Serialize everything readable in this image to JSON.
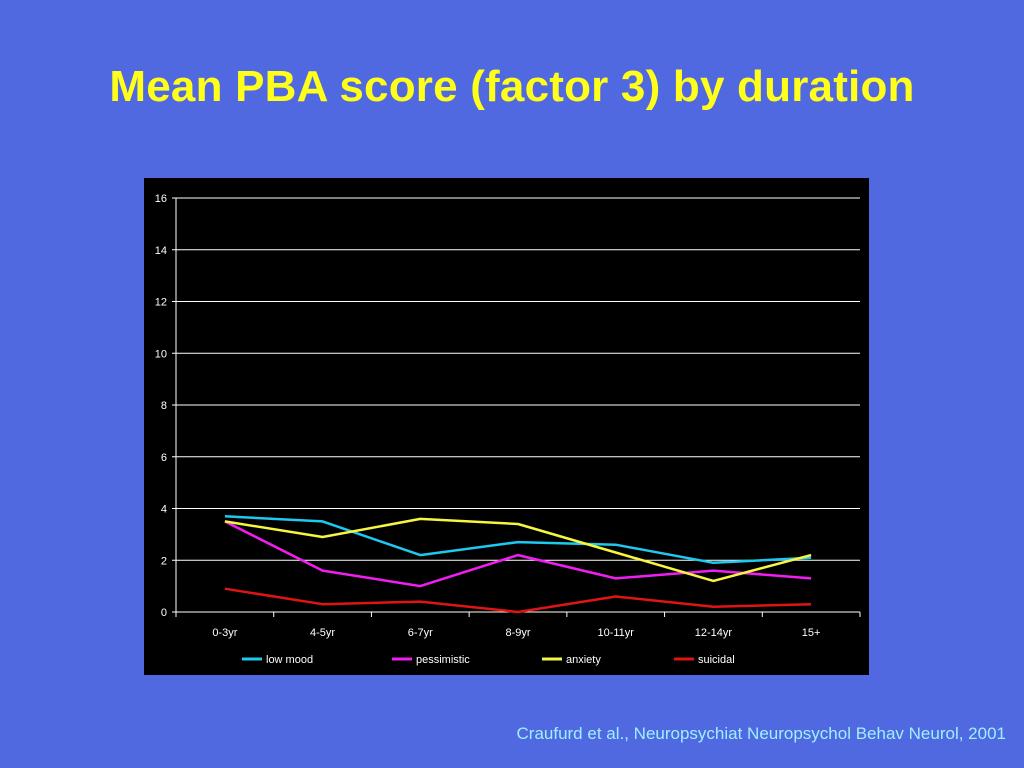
{
  "slide": {
    "title": "Mean PBA score (factor 3) by duration",
    "citation": "Craufurd et al., Neuropsychiat Neuropsychol Behav Neurol, 2001"
  },
  "colors": {
    "background": "#5068e0",
    "title": "#ffff1a",
    "citation": "#9ff0ff",
    "chart_bg": "#000000"
  },
  "chart_data": {
    "type": "line",
    "title": "",
    "xlabel": "",
    "ylabel": "",
    "categories": [
      "0-3yr",
      "4-5yr",
      "6-7yr",
      "8-9yr",
      "10-11yr",
      "12-14yr",
      "15+"
    ],
    "ylim": [
      0,
      16
    ],
    "yticks": [
      "0",
      "2",
      "4",
      "6",
      "8",
      "10",
      "12",
      "14",
      "16"
    ],
    "grid": true,
    "legend_position": "bottom",
    "series": [
      {
        "name": "low mood",
        "color": "#1ec8f0",
        "values": [
          3.7,
          3.5,
          2.2,
          2.7,
          2.6,
          1.9,
          2.1
        ]
      },
      {
        "name": "pessimistic",
        "color": "#f01ef0",
        "values": [
          3.5,
          1.6,
          1.0,
          2.2,
          1.3,
          1.6,
          1.3
        ]
      },
      {
        "name": "anxiety",
        "color": "#f5f542",
        "values": [
          3.5,
          2.9,
          3.6,
          3.4,
          2.3,
          1.2,
          2.2
        ]
      },
      {
        "name": "suicidal",
        "color": "#e01414",
        "values": [
          0.9,
          0.3,
          0.4,
          0.0,
          0.6,
          0.2,
          0.3
        ]
      }
    ]
  }
}
